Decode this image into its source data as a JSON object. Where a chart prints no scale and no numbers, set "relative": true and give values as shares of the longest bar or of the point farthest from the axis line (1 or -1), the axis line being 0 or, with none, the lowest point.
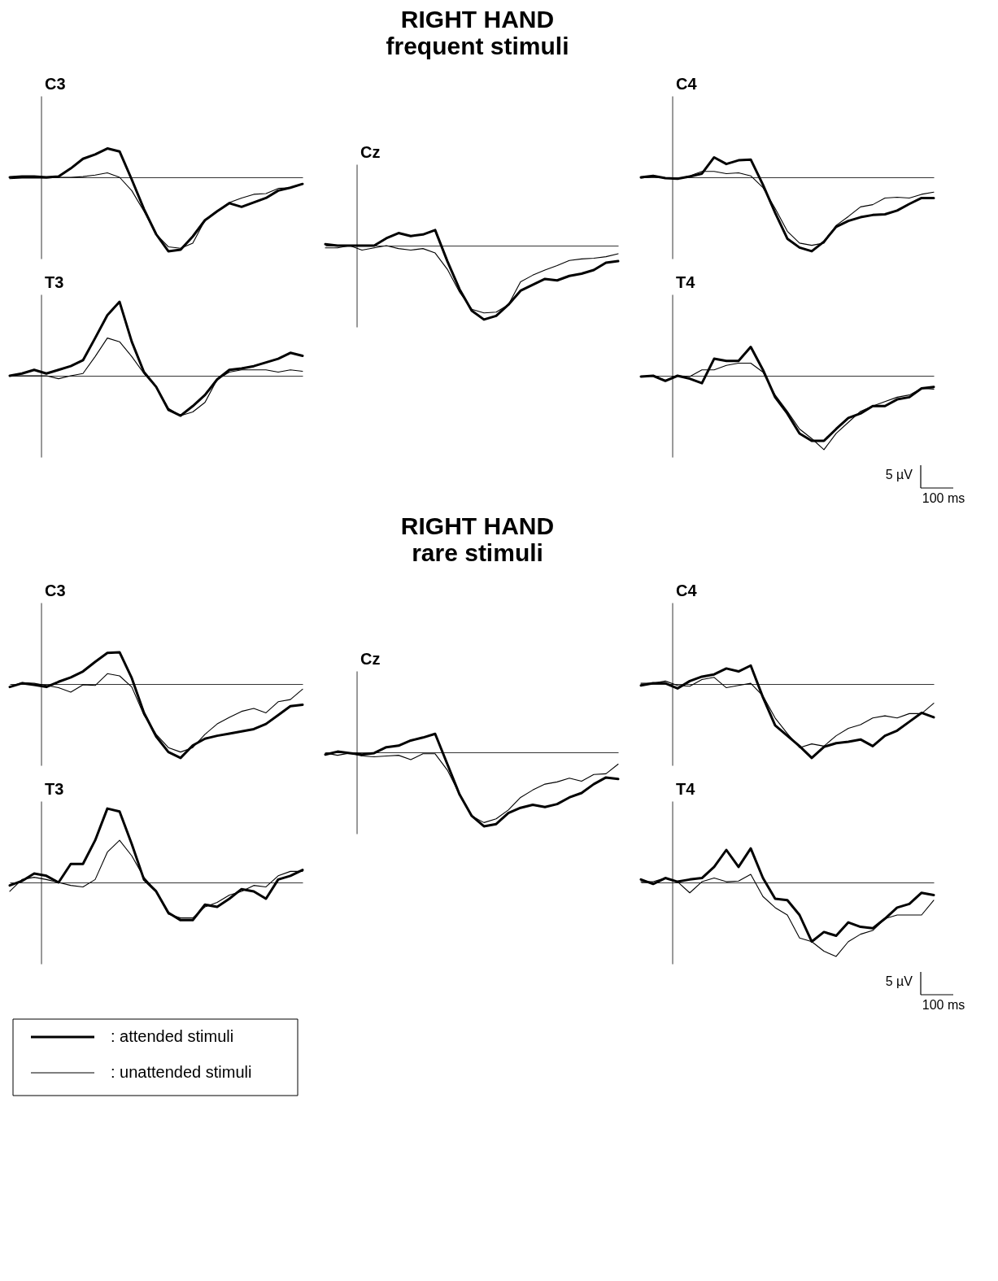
{
  "chart_data": [
    {
      "type": "other",
      "title": "RIGHT HAND",
      "subtitle": "frequent stimuli"
    },
    {
      "type": "line",
      "title": "C3",
      "relative": true,
      "tick_labels": false,
      "categories": [
        null,
        null,
        null,
        null,
        null,
        null,
        null,
        null,
        null,
        null,
        null,
        null,
        null,
        null,
        null,
        null,
        null,
        null,
        null,
        null,
        null,
        null,
        null,
        null,
        null
      ],
      "series": [
        {
          "color": "#000000",
          "values": [
            0,
            0.01,
            0.01,
            0,
            0.01,
            0.12,
            0.25,
            0.31,
            0.39,
            0.35,
            -0.03,
            -0.43,
            -0.77,
            -1,
            -0.98,
            -0.8,
            -0.58,
            -0.46,
            -0.35,
            -0.4,
            -0.34,
            -0.28,
            -0.18,
            -0.14,
            -0.09
          ]
        },
        {
          "color": "#000000",
          "values": [
            -0.02,
            -0.01,
            -0.01,
            -0.01,
            0,
            0,
            0.01,
            0.03,
            0.06,
            0,
            -0.18,
            -0.46,
            -0.77,
            -0.94,
            -0.96,
            -0.89,
            -0.58,
            -0.46,
            -0.34,
            -0.28,
            -0.23,
            -0.22,
            -0.15,
            -0.14,
            -0.09
          ]
        }
      ]
    },
    {
      "type": "line",
      "title": "T3",
      "relative": true,
      "tick_labels": false,
      "categories": [
        null,
        null,
        null,
        null,
        null,
        null,
        null,
        null,
        null,
        null,
        null,
        null,
        null,
        null,
        null,
        null,
        null,
        null,
        null,
        null,
        null,
        null,
        null,
        null,
        null
      ],
      "series": [
        {
          "color": "#000000",
          "values": [
            0,
            0.03,
            0.08,
            0.03,
            0.08,
            0.13,
            0.21,
            0.51,
            0.82,
            1,
            0.46,
            0.05,
            -0.15,
            -0.46,
            -0.54,
            -0.41,
            -0.26,
            -0.05,
            0.08,
            0.1,
            0.13,
            0.18,
            0.23,
            0.31,
            0.27
          ]
        },
        {
          "color": "#000000",
          "values": [
            0,
            0,
            0,
            0,
            -0.04,
            0,
            0.03,
            0.26,
            0.51,
            0.46,
            0.26,
            0.03,
            -0.15,
            -0.44,
            -0.54,
            -0.49,
            -0.36,
            -0.05,
            0.05,
            0.08,
            0.08,
            0.08,
            0.05,
            0.08,
            0.06
          ]
        }
      ]
    },
    {
      "type": "line",
      "title": "Cz",
      "relative": true,
      "tick_labels": false,
      "categories": [
        null,
        null,
        null,
        null,
        null,
        null,
        null,
        null,
        null,
        null,
        null,
        null,
        null,
        null,
        null,
        null,
        null,
        null,
        null,
        null,
        null,
        null,
        null,
        null,
        null
      ],
      "series": [
        {
          "color": "#000000",
          "values": [
            0.02,
            0,
            0,
            0,
            0,
            0.1,
            0.17,
            0.13,
            0.15,
            0.21,
            -0.21,
            -0.59,
            -0.88,
            -1,
            -0.95,
            -0.8,
            -0.61,
            -0.53,
            -0.45,
            -0.47,
            -0.41,
            -0.38,
            -0.33,
            -0.23,
            -0.21
          ]
        },
        {
          "color": "#000000",
          "values": [
            -0.03,
            -0.03,
            0,
            -0.06,
            -0.03,
            0,
            -0.04,
            -0.06,
            -0.04,
            -0.1,
            -0.32,
            -0.63,
            -0.86,
            -0.91,
            -0.9,
            -0.8,
            -0.49,
            -0.4,
            -0.33,
            -0.27,
            -0.2,
            -0.18,
            -0.17,
            -0.15,
            -0.11
          ]
        }
      ]
    },
    {
      "type": "line",
      "title": "C4",
      "relative": true,
      "tick_labels": false,
      "categories": [
        null,
        null,
        null,
        null,
        null,
        null,
        null,
        null,
        null,
        null,
        null,
        null,
        null,
        null,
        null,
        null,
        null,
        null,
        null,
        null,
        null,
        null,
        null,
        null,
        null
      ],
      "series": [
        {
          "color": "#000000",
          "values": [
            0,
            0.02,
            -0.01,
            -0.02,
            0.01,
            0.05,
            0.27,
            0.18,
            0.23,
            0.24,
            -0.1,
            -0.48,
            -0.83,
            -0.95,
            -1,
            -0.87,
            -0.67,
            -0.59,
            -0.54,
            -0.51,
            -0.5,
            -0.45,
            -0.36,
            -0.28,
            -0.28
          ]
        },
        {
          "color": "#000000",
          "values": [
            -0.01,
            0.01,
            -0.01,
            -0.02,
            0.02,
            0.08,
            0.08,
            0.05,
            0.06,
            0.02,
            -0.14,
            -0.42,
            -0.73,
            -0.89,
            -0.92,
            -0.89,
            -0.65,
            -0.53,
            -0.4,
            -0.37,
            -0.28,
            -0.27,
            -0.28,
            -0.23,
            -0.2
          ]
        }
      ]
    },
    {
      "type": "line",
      "title": "T4",
      "relative": true,
      "tick_labels": false,
      "categories": [
        null,
        null,
        null,
        null,
        null,
        null,
        null,
        null,
        null,
        null,
        null,
        null,
        null,
        null,
        null,
        null,
        null,
        null,
        null,
        null,
        null,
        null,
        null,
        null,
        null
      ],
      "series": [
        {
          "color": "#000000",
          "values": [
            -0.01,
            0,
            -0.07,
            0,
            -0.04,
            -0.1,
            0.23,
            0.2,
            0.2,
            0.39,
            0.08,
            -0.29,
            -0.51,
            -0.78,
            -0.88,
            -0.88,
            -0.72,
            -0.57,
            -0.51,
            -0.41,
            -0.41,
            -0.32,
            -0.29,
            -0.17,
            -0.15
          ]
        },
        {
          "color": "#000000",
          "values": [
            -0.01,
            0,
            -0.06,
            0,
            -0.01,
            0.08,
            0.08,
            0.14,
            0.17,
            0.17,
            0.05,
            -0.26,
            -0.48,
            -0.72,
            -0.85,
            -1,
            -0.78,
            -0.63,
            -0.48,
            -0.41,
            -0.35,
            -0.29,
            -0.26,
            -0.17,
            -0.18
          ]
        }
      ]
    },
    {
      "type": "other",
      "annotations": [
        "5 µV",
        "100 ms"
      ]
    },
    {
      "type": "other",
      "title": "RIGHT HAND",
      "subtitle": "rare stimuli"
    },
    {
      "type": "line",
      "title": "C3",
      "relative": true,
      "tick_labels": false,
      "categories": [
        null,
        null,
        null,
        null,
        null,
        null,
        null,
        null,
        null,
        null,
        null,
        null,
        null,
        null,
        null,
        null,
        null,
        null,
        null,
        null,
        null,
        null,
        null,
        null,
        null
      ],
      "series": [
        {
          "color": "#000000",
          "values": [
            -0.04,
            0.01,
            -0.01,
            -0.04,
            0.03,
            0.09,
            0.17,
            0.3,
            0.42,
            0.43,
            0.08,
            -0.39,
            -0.71,
            -0.92,
            -1,
            -0.83,
            -0.74,
            -0.7,
            -0.67,
            -0.64,
            -0.61,
            -0.54,
            -0.42,
            -0.3,
            -0.28
          ]
        },
        {
          "color": "#000000",
          "values": [
            -0.04,
            0.02,
            0.01,
            -0.02,
            -0.05,
            -0.11,
            -0.01,
            -0.02,
            0.14,
            0.11,
            -0.04,
            -0.42,
            -0.68,
            -0.86,
            -0.92,
            -0.86,
            -0.68,
            -0.54,
            -0.45,
            -0.37,
            -0.33,
            -0.39,
            -0.24,
            -0.21,
            -0.07
          ]
        }
      ]
    },
    {
      "type": "line",
      "title": "T3",
      "relative": true,
      "tick_labels": false,
      "legend": "bottom left",
      "categories": [
        null,
        null,
        null,
        null,
        null,
        null,
        null,
        null,
        null,
        null,
        null,
        null,
        null,
        null,
        null,
        null,
        null,
        null,
        null,
        null,
        null,
        null,
        null,
        null,
        null
      ],
      "series": [
        {
          "name": ": attended stimuli",
          "color": "#000000",
          "values": [
            -0.04,
            0.02,
            0.12,
            0.09,
            0,
            0.25,
            0.25,
            0.57,
            1,
            0.96,
            0.52,
            0.04,
            -0.12,
            -0.41,
            -0.51,
            -0.51,
            -0.3,
            -0.33,
            -0.22,
            -0.09,
            -0.12,
            -0.22,
            0.04,
            0.09,
            0.17
          ]
        },
        {
          "name": ": unattended stimuli",
          "color": "#000000",
          "values": [
            -0.12,
            0.04,
            0.07,
            0.04,
            0,
            -0.04,
            -0.06,
            0.04,
            0.41,
            0.57,
            0.36,
            0.07,
            -0.12,
            -0.43,
            -0.48,
            -0.48,
            -0.33,
            -0.27,
            -0.17,
            -0.12,
            -0.04,
            -0.06,
            0.09,
            0.15,
            0.15
          ]
        }
      ]
    },
    {
      "type": "line",
      "title": "Cz",
      "relative": true,
      "tick_labels": false,
      "categories": [
        null,
        null,
        null,
        null,
        null,
        null,
        null,
        null,
        null,
        null,
        null,
        null,
        null,
        null,
        null,
        null,
        null,
        null,
        null,
        null,
        null,
        null,
        null,
        null,
        null
      ],
      "series": [
        {
          "color": "#000000",
          "values": [
            -0.03,
            0.01,
            -0.01,
            -0.03,
            -0.01,
            0.07,
            0.09,
            0.16,
            0.2,
            0.25,
            -0.16,
            -0.57,
            -0.86,
            -1,
            -0.97,
            -0.82,
            -0.75,
            -0.71,
            -0.74,
            -0.7,
            -0.61,
            -0.55,
            -0.43,
            -0.34,
            -0.36
          ]
        },
        {
          "color": "#000000",
          "values": [
            -0.01,
            -0.04,
            -0.01,
            -0.05,
            -0.06,
            -0.05,
            -0.04,
            -0.1,
            -0.02,
            -0.02,
            -0.24,
            -0.57,
            -0.86,
            -0.95,
            -0.9,
            -0.78,
            -0.61,
            -0.51,
            -0.43,
            -0.4,
            -0.35,
            -0.39,
            -0.3,
            -0.29,
            -0.16
          ]
        }
      ]
    },
    {
      "type": "line",
      "title": "C4",
      "relative": true,
      "tick_labels": false,
      "categories": [
        null,
        null,
        null,
        null,
        null,
        null,
        null,
        null,
        null,
        null,
        null,
        null,
        null,
        null,
        null,
        null,
        null,
        null,
        null,
        null,
        null,
        null,
        null,
        null,
        null
      ],
      "series": [
        {
          "color": "#000000",
          "values": [
            -0.02,
            0.01,
            0.01,
            -0.06,
            0.04,
            0.1,
            0.13,
            0.21,
            0.17,
            0.25,
            -0.18,
            -0.56,
            -0.7,
            -0.84,
            -1,
            -0.85,
            -0.8,
            -0.78,
            -0.75,
            -0.84,
            -0.7,
            -0.63,
            -0.51,
            -0.39,
            -0.45
          ]
        },
        {
          "color": "#000000",
          "values": [
            0.01,
            0.01,
            0.04,
            -0.02,
            -0.03,
            0.06,
            0.09,
            -0.05,
            -0.02,
            0.01,
            -0.16,
            -0.46,
            -0.67,
            -0.86,
            -0.81,
            -0.84,
            -0.7,
            -0.6,
            -0.55,
            -0.46,
            -0.43,
            -0.46,
            -0.4,
            -0.4,
            -0.26
          ]
        }
      ]
    },
    {
      "type": "line",
      "title": "T4",
      "relative": true,
      "tick_labels": false,
      "categories": [
        null,
        null,
        null,
        null,
        null,
        null,
        null,
        null,
        null,
        null,
        null,
        null,
        null,
        null,
        null,
        null,
        null,
        null,
        null,
        null,
        null,
        null,
        null,
        null,
        null
      ],
      "series": [
        {
          "color": "#000000",
          "values": [
            0.04,
            -0.02,
            0.06,
            0.01,
            0.04,
            0.06,
            0.21,
            0.44,
            0.21,
            0.46,
            0.06,
            -0.22,
            -0.24,
            -0.44,
            -0.8,
            -0.67,
            -0.72,
            -0.54,
            -0.6,
            -0.62,
            -0.49,
            -0.34,
            -0.29,
            -0.14,
            -0.17
          ]
        },
        {
          "color": "#000000",
          "values": [
            0.01,
            0.01,
            0.06,
            0.01,
            -0.14,
            0.01,
            0.06,
            0.01,
            0.02,
            0.11,
            -0.19,
            -0.34,
            -0.44,
            -0.75,
            -0.8,
            -0.93,
            -1,
            -0.8,
            -0.7,
            -0.65,
            -0.49,
            -0.44,
            -0.44,
            -0.44,
            -0.24
          ]
        }
      ]
    },
    {
      "type": "other",
      "annotations": [
        "5 µV",
        "100 ms"
      ]
    }
  ]
}
